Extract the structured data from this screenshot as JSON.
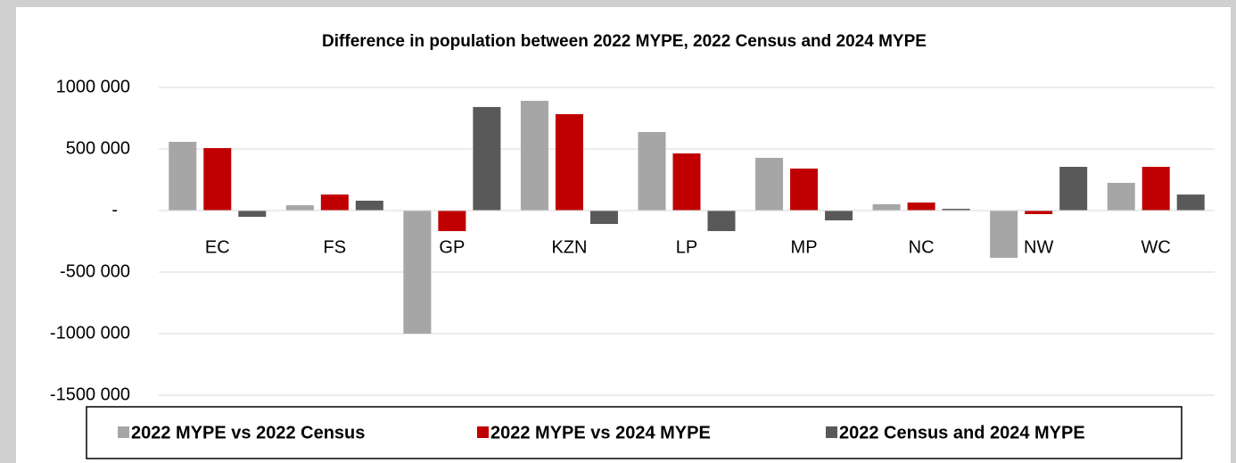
{
  "chart_data": {
    "type": "bar",
    "title": "Difference in population between 2022 MYPE, 2022 Census and 2024 MYPE",
    "categories": [
      "EC",
      "FS",
      "GP",
      "KZN",
      "LP",
      "MP",
      "NC",
      "NW",
      "WC"
    ],
    "series": [
      {
        "name": "2022 MYPE vs 2022 Census",
        "color": "#a6a6a6",
        "values": [
          558000,
          43000,
          -1000000,
          891000,
          638000,
          428000,
          51000,
          -384000,
          225000
        ]
      },
      {
        "name": "2022 MYPE vs 2024 MYPE",
        "color": "#c00000",
        "values": [
          507000,
          130000,
          -167000,
          783000,
          464000,
          341000,
          65000,
          -29000,
          355000
        ]
      },
      {
        "name": "2022 Census and 2024 MYPE",
        "color": "#595959",
        "values": [
          -51000,
          80000,
          841000,
          -109000,
          -167000,
          -80000,
          14000,
          355000,
          130000
        ]
      }
    ],
    "ylim": [
      -1500000,
      1000000
    ],
    "yticks": [
      {
        "value": -1500000,
        "label": "-1500 000"
      },
      {
        "value": -1000000,
        "label": "-1000 000"
      },
      {
        "value": -500000,
        "label": "-500 000"
      },
      {
        "value": 0,
        "label": "-"
      },
      {
        "value": 500000,
        "label": "500 000"
      },
      {
        "value": 1000000,
        "label": "1000 000"
      }
    ],
    "grid": true,
    "legend": "bottom"
  }
}
